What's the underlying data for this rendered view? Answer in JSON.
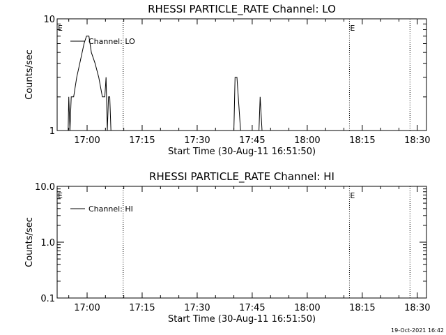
{
  "chart_data": [
    {
      "type": "line",
      "title": "RHESSI PARTICLE_RATE Channel: LO",
      "xlabel": "Start Time (30-Aug-11 16:51:50)",
      "ylabel": "Counts/sec",
      "y_scale": "log",
      "ylim": [
        1,
        10
      ],
      "y_ticks": [
        1,
        10
      ],
      "y_tick_labels": [
        "1",
        "10"
      ],
      "xlim": [
        "16:51:50",
        "18:32:30"
      ],
      "x_ticks": [
        "17:00",
        "17:15",
        "17:30",
        "17:45",
        "18:00",
        "18:15",
        "18:30"
      ],
      "grid": false,
      "legend_position": "top-left",
      "series": [
        {
          "name": "Channel: LO",
          "color": "#000000",
          "points": [
            [
              "16:54:50",
              1
            ],
            [
              "16:55:00",
              2
            ],
            [
              "16:55:20",
              1
            ],
            [
              "16:55:40",
              2
            ],
            [
              "16:56:20",
              2
            ],
            [
              "16:57:10",
              3
            ],
            [
              "16:58:00",
              4
            ],
            [
              "16:59:10",
              6
            ],
            [
              "16:59:50",
              7
            ],
            [
              "17:00:30",
              7
            ],
            [
              "17:01:10",
              5
            ],
            [
              "17:02:10",
              4
            ],
            [
              "17:03:10",
              3
            ],
            [
              "17:04:10",
              2
            ],
            [
              "17:04:50",
              2
            ],
            [
              "17:05:10",
              3
            ],
            [
              "17:05:30",
              1
            ],
            [
              "17:05:50",
              2
            ],
            [
              "17:06:10",
              2
            ],
            [
              "17:06:30",
              1
            ],
            [
              "17:40:00",
              1
            ],
            [
              "17:40:20",
              3
            ],
            [
              "17:40:50",
              3
            ],
            [
              "17:41:50",
              1
            ],
            [
              "17:46:50",
              1
            ],
            [
              "17:47:10",
              2
            ],
            [
              "17:47:40",
              1
            ]
          ]
        }
      ],
      "vertical_markers": [
        {
          "time": "16:51:50",
          "label": "E",
          "style": "solid"
        },
        {
          "time": "17:09:50",
          "label": "",
          "style": "dotted"
        },
        {
          "time": "18:11:30",
          "label": "E",
          "style": "dotted"
        },
        {
          "time": "18:28:00",
          "label": "",
          "style": "dotted"
        }
      ]
    },
    {
      "type": "line",
      "title": "RHESSI PARTICLE_RATE Channel: HI",
      "xlabel": "Start Time (30-Aug-11 16:51:50)",
      "ylabel": "Counts/sec",
      "y_scale": "log",
      "ylim": [
        0.1,
        10
      ],
      "y_ticks": [
        0.1,
        1,
        10
      ],
      "y_tick_labels": [
        "0.1",
        "1.0",
        "10.0"
      ],
      "xlim": [
        "16:51:50",
        "18:32:30"
      ],
      "x_ticks": [
        "17:00",
        "17:15",
        "17:30",
        "17:45",
        "18:00",
        "18:15",
        "18:30"
      ],
      "grid": false,
      "legend_position": "top-left",
      "series": [
        {
          "name": "Channel: HI",
          "color": "#000000",
          "points": []
        }
      ],
      "vertical_markers": [
        {
          "time": "16:51:50",
          "label": "E",
          "style": "solid"
        },
        {
          "time": "17:09:50",
          "label": "",
          "style": "dotted"
        },
        {
          "time": "18:11:30",
          "label": "E",
          "style": "dotted"
        },
        {
          "time": "18:28:00",
          "label": "",
          "style": "dotted"
        }
      ]
    }
  ],
  "footer": {
    "timestamp": "19-Oct-2021 16:42"
  }
}
